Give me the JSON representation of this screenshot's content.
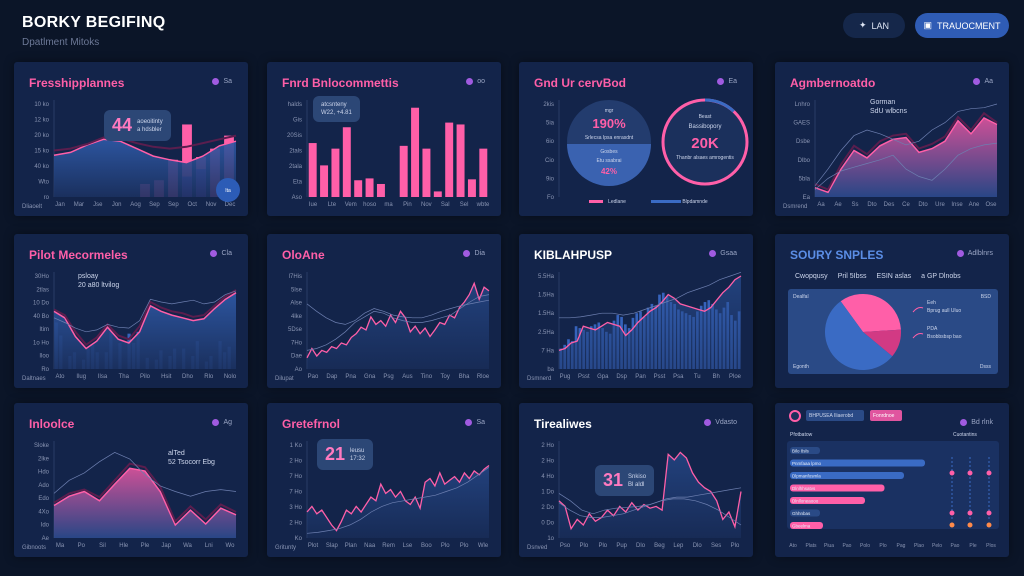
{
  "header": {
    "title": "BORKY BEGIFINQ",
    "subtitle": "Dpatlment Mitoks",
    "btn_a": "LAN",
    "btn_a_icon": "pin-icon",
    "btn_b": "TRAUOCMENT",
    "btn_b_icon": "document-icon"
  },
  "colors": {
    "bg": "#0b1528",
    "card": "#13244a",
    "pink": "#ff5fa8",
    "blue": "#3a6bc4",
    "accent": "#2f5cb5"
  },
  "cards": [
    {
      "title": "Fresshipplannes",
      "legend": "Sa",
      "callout_big": "44",
      "callout_sm": [
        "aoeoitinty",
        "a hdsbler"
      ],
      "caption": "Dliaoelt",
      "y_labels": [
        "10 ko",
        "12 ko",
        "20 ko",
        "15 ko",
        "40 ko",
        "Wto",
        "ro"
      ],
      "x_labels": [
        "Jan",
        "Mar",
        "Jse",
        "Jon",
        "Aog",
        "Sep",
        "Sep",
        "Oct",
        "Nov",
        "Dec"
      ],
      "area": [
        45,
        48,
        56,
        62,
        60,
        52,
        44,
        40,
        37,
        44,
        55,
        60
      ],
      "line2": [
        50,
        52,
        57,
        64,
        63,
        58,
        54,
        52,
        54,
        58,
        62,
        66
      ],
      "bars": [
        [
          0,
          0
        ],
        [
          0,
          0
        ],
        [
          0,
          0
        ],
        [
          0,
          0
        ],
        [
          0,
          0
        ],
        [
          0,
          0
        ],
        [
          14,
          0
        ],
        [
          18,
          0
        ],
        [
          40,
          0
        ],
        [
          78,
          22
        ],
        [
          43,
          30
        ],
        [
          52,
          0
        ],
        [
          66,
          0
        ]
      ],
      "badge": "Ita"
    },
    {
      "title": "Fnrd Bnlocommettis",
      "legend": "oo",
      "callout_big": "",
      "callout_sm": [
        "atcsnteny",
        "W22, +4.81"
      ],
      "y_labels": [
        "halds",
        "Gis",
        "20Sis",
        "2tals",
        "2tala",
        "Eta",
        "Aso"
      ],
      "x_labels": [
        "Iue",
        "Lte",
        "Vem",
        "hoso",
        "ma",
        "Pin",
        "Nov",
        "Sal",
        "Sel",
        "wbte"
      ],
      "bars": [
        58,
        34,
        52,
        75,
        18,
        20,
        14,
        0,
        55,
        96,
        52,
        6,
        80,
        78,
        19,
        52
      ]
    },
    {
      "title": "Gnd Ur cervBod",
      "legend": "Ea",
      "y_labels": [
        "2kis",
        "5ia",
        "6io",
        "Cio",
        "9io",
        "Fo"
      ],
      "circle_a": {
        "top": "mgr",
        "big": "190%",
        "sub": "Srlecsa Ipsa enrasdnt",
        "low": "Gosbes",
        "low2": "Etu ssabrai",
        "low3": "42%"
      },
      "circle_b": {
        "top": "Beast",
        "sub1": "Bassibopory",
        "big": "20K",
        "sub": "Thanbr alsaes amrogentis"
      },
      "ring_progress": 0.12,
      "legend_a": "Ledlane",
      "legend_b": "Blpdamnde"
    },
    {
      "title": "Agmbernoatdo",
      "legend": "Aa",
      "note": [
        "Gorman",
        "SdU wlbcns"
      ],
      "caption": "Dsmrend",
      "y_labels": [
        "Lnhro",
        "GAES",
        "Dsbe",
        "Dlbo",
        "5bla",
        "Ea"
      ],
      "x_labels": [
        "Aa",
        "Ae",
        "Ss",
        "Dto",
        "Des",
        "Ce",
        "Dto",
        "Ure",
        "Inse",
        "Ane",
        "Ose"
      ],
      "area": [
        10,
        5,
        30,
        50,
        42,
        55,
        62,
        64,
        48,
        52,
        60,
        82,
        68,
        85,
        78
      ],
      "line2": [
        14,
        8,
        35,
        55,
        46,
        60,
        66,
        68,
        52,
        57,
        65,
        86,
        72,
        90,
        80
      ],
      "line3": [
        12,
        30,
        50,
        66,
        72,
        68,
        62,
        56,
        60,
        72,
        80,
        92,
        95,
        96,
        100
      ],
      "line4": [
        8,
        20,
        28,
        32,
        36,
        40,
        45,
        30,
        22,
        18,
        30,
        45,
        52,
        56,
        58
      ]
    },
    {
      "title": "Pilot Mecormeles",
      "legend": "Cla",
      "note": [
        "psloay",
        "20  a80 ltvilog"
      ],
      "caption": "Daltnaes",
      "y_labels": [
        "30Ho",
        "2tlas",
        "10 Do",
        "40 Bo",
        "Itim",
        "1o Ho",
        "Iloo",
        "Ro"
      ],
      "x_labels": [
        "Ato",
        "Ilug",
        "Ilsa",
        "Tha",
        "Pilo",
        "Hsit",
        "Dho",
        "Rlo",
        "Nolo"
      ],
      "area": [
        62,
        55,
        35,
        22,
        30,
        45,
        32,
        28,
        40,
        68,
        62,
        58,
        55,
        52,
        54,
        65,
        75,
        82
      ],
      "line2": [
        64,
        58,
        40,
        26,
        34,
        48,
        36,
        32,
        46,
        72,
        66,
        62,
        60,
        56,
        58,
        68,
        78,
        85
      ],
      "line3": [
        55,
        50,
        44,
        40,
        42,
        48,
        45,
        44,
        52,
        75,
        72,
        70,
        72,
        74,
        70,
        72,
        80,
        84
      ],
      "bars": [
        50,
        36,
        0,
        14,
        18,
        0,
        10,
        22,
        26,
        18,
        0,
        18,
        40,
        0,
        28,
        0,
        38,
        28,
        40,
        0,
        12,
        0,
        10,
        20,
        0,
        14,
        22,
        0,
        22,
        0,
        14,
        30,
        0,
        8,
        14,
        0,
        30,
        18,
        24,
        0
      ]
    },
    {
      "title": "OloAne",
      "legend": "Dia",
      "caption": "Dilupat",
      "y_labels": [
        "l7His",
        "5lse",
        "Alse",
        "4lke",
        "5Dse",
        "7Ho",
        "Dae",
        "Ao"
      ],
      "x_labels": [
        "Pao",
        "Dap",
        "Pna",
        "Gna",
        "Psg",
        "Aus",
        "Tino",
        "Toy",
        "Bha",
        "Rloe"
      ],
      "line": [
        12,
        22,
        14,
        20,
        18,
        24,
        22,
        28,
        26,
        34,
        38,
        45,
        42,
        56,
        48,
        52,
        46,
        58,
        50,
        62,
        55,
        40,
        46,
        38,
        44,
        35,
        42,
        50,
        48,
        58,
        55,
        66,
        72,
        80,
        92,
        75,
        88,
        84
      ],
      "line2": [
        20,
        22,
        26,
        32,
        40,
        50,
        56,
        62,
        60,
        55,
        52,
        50,
        50,
        52,
        55,
        58,
        65,
        72,
        78,
        80
      ],
      "line3": [
        70,
        62,
        55,
        50,
        48,
        52,
        60,
        65,
        62,
        58,
        56,
        55,
        55,
        58,
        62,
        65,
        68,
        70,
        72,
        74
      ]
    },
    {
      "title": "KIBLAHPUSP",
      "legend": "Gsaa",
      "caption": "Dsmnerd",
      "y_labels": [
        "5.5Ha",
        "1.5Ha",
        "1.5Ha",
        "2.5Ha",
        "7 Ha",
        "ba"
      ],
      "x_labels": [
        "Pug",
        "Psst",
        "Gpa",
        "Dsp",
        "Pan",
        "Psst",
        "Psa",
        "Tu",
        "Bh",
        "Ploe"
      ],
      "bars": [
        22,
        26,
        32,
        30,
        46,
        44,
        42,
        40,
        46,
        48,
        50,
        44,
        40,
        38,
        52,
        58,
        56,
        48,
        44,
        55,
        60,
        62,
        56,
        66,
        70,
        68,
        80,
        82,
        78,
        72,
        70,
        64,
        62,
        60,
        58,
        56,
        62,
        68,
        72,
        74,
        70,
        64,
        60,
        66,
        72,
        58,
        52,
        62
      ],
      "line": [
        20,
        22,
        28,
        30,
        46,
        44,
        42,
        46,
        50,
        48,
        46,
        36,
        42,
        50,
        56,
        62,
        66,
        72,
        80,
        76,
        70,
        68,
        66,
        64,
        62,
        66,
        74,
        82,
        88,
        96,
        100
      ],
      "line2": [
        55,
        55,
        56,
        58,
        60,
        60,
        58,
        60,
        64,
        68,
        72,
        76,
        82,
        86,
        90,
        96,
        100,
        104
      ]
    },
    {
      "title": "SOURY SNPLES",
      "legend": "Adlblnrs",
      "legend_row": [
        "Cwopqusy",
        "Pril 5Ibss",
        "ESIN aslas",
        "a GP Dlnobs"
      ],
      "panel_top": "Dealfal",
      "panel_right": "BSD",
      "panel_bl": "Egonth",
      "panel_br": "Dsss",
      "slices": [
        {
          "label": "Eeh",
          "sub": "Bprug aull Uluo",
          "value": 34,
          "color": "#ff5fa8"
        },
        {
          "label": "",
          "sub": "",
          "value": 12,
          "color": "#d23a84"
        },
        {
          "label": "PDA",
          "sub": "Bsobbsbsp bao",
          "value": 54,
          "color": "#3a6bc4"
        }
      ]
    },
    {
      "title": "Inloolce",
      "legend": "Ag",
      "note": [
        "alTed",
        "52  Tsocorr Ebg"
      ],
      "caption": "Gibnoots",
      "y_labels": [
        "Sloke",
        "2lke",
        "Hdo",
        "Ado",
        "Edo",
        "4Xo",
        "Ido",
        "Ae"
      ],
      "x_labels": [
        "Ma",
        "Po",
        "Sil",
        "Hle",
        "Ple",
        "Jap",
        "Wa",
        "Lni",
        "Wo"
      ],
      "area": [
        35,
        45,
        50,
        40,
        58,
        75,
        72,
        50,
        14,
        30,
        15,
        32,
        25
      ],
      "line2": [
        38,
        48,
        52,
        44,
        62,
        80,
        76,
        55,
        18,
        34,
        20,
        36,
        28
      ],
      "line3": [
        48,
        62,
        70,
        82,
        92,
        85,
        68,
        56,
        50,
        45,
        50,
        52,
        50
      ]
    },
    {
      "title": "Gretefrnol",
      "legend": "Sa",
      "callout_big": "21",
      "callout_sm": [
        "leusu",
        "17:32"
      ],
      "caption": "Gritunty",
      "y_labels": [
        "1 Ko",
        "2 Ho",
        "7 Ho",
        "7 Ho",
        "3 Ho",
        "2 Ho",
        "Ko"
      ],
      "x_labels": [
        "Plot",
        "Slap",
        "Plan",
        "Naa",
        "Rem",
        "Lse",
        "Boo",
        "Plo",
        "Plo",
        "Wle"
      ],
      "line": [
        28,
        34,
        26,
        30,
        22,
        14,
        8,
        18,
        30,
        26,
        34,
        28,
        36,
        44,
        40,
        58,
        48,
        52,
        44,
        50,
        40,
        36,
        44,
        32,
        60,
        64,
        56,
        70,
        58,
        62,
        66,
        60,
        70,
        64,
        72,
        68,
        74,
        78
      ],
      "line2": [
        5,
        6,
        8,
        10,
        14,
        20,
        28,
        34,
        38,
        40,
        42,
        44,
        46,
        50,
        54,
        60,
        68,
        76
      ]
    },
    {
      "title": "Tirealiwes",
      "legend": "Vdasto",
      "callout_big": "31",
      "callout_sm": [
        "Snkiso",
        "Bl aldl"
      ],
      "caption": "Dsnved",
      "y_labels": [
        "2 Ho",
        "2 Ho",
        "4 Ho",
        "1 Do",
        "2 Do",
        "0 Do",
        "1o"
      ],
      "x_labels": [
        "Pso",
        "Plo",
        "Plo",
        "Pup",
        "Dlo",
        "Beg",
        "Lep",
        "Dlo",
        "Ses",
        "Plo"
      ],
      "line": [
        40,
        34,
        10,
        20,
        14,
        26,
        18,
        22,
        30,
        24,
        34,
        28,
        38,
        30,
        36,
        32,
        34,
        30,
        90,
        84,
        92,
        86,
        70,
        60,
        54,
        50,
        40,
        20,
        28,
        12,
        50
      ],
      "line2": [
        48,
        40,
        30,
        26,
        30,
        32,
        33,
        34,
        36,
        40,
        42,
        42,
        40,
        36,
        30,
        22,
        14
      ],
      "line3": [
        38,
        30,
        24,
        22,
        22,
        24,
        26,
        30,
        34,
        38,
        42,
        44,
        44,
        46,
        48,
        50,
        52,
        54
      ]
    },
    {
      "title": "",
      "chips": [
        "BHPUSEA Iliaerobd",
        "Fonrdnoe"
      ],
      "legend": "Bd rlnk",
      "col_left": "Pfotbatow",
      "col_right": "Cuotantins",
      "rows": [
        {
          "label": "Bilo 8sls",
          "value": 0,
          "color": "#3a6bc4"
        },
        {
          "label": "Pnmfaaa lpmo",
          "value": 0.9,
          "color": "#3a6bc4"
        },
        {
          "label": "Dlpmanfosmla",
          "value": 0.76,
          "color": "#3a6bc4"
        },
        {
          "label": "Dlnlhhsatvs",
          "value": 0.63,
          "color": "#ff5fa8"
        },
        {
          "label": "Dlnlloneaooo",
          "value": 0.5,
          "color": "#ff5fa8"
        },
        {
          "label": "Ghhnbas",
          "value": 0,
          "color": "#3a6bc4"
        },
        {
          "label": "Gbeelma",
          "value": 0.22,
          "color": "#ff5fa8"
        }
      ],
      "x_labels": [
        "Ato",
        "Plats",
        "Piua",
        "Pao",
        "Polo",
        "Plo",
        "Pag",
        "Plao",
        "Pelo",
        "Pao",
        "Ple",
        "Plos"
      ]
    }
  ]
}
